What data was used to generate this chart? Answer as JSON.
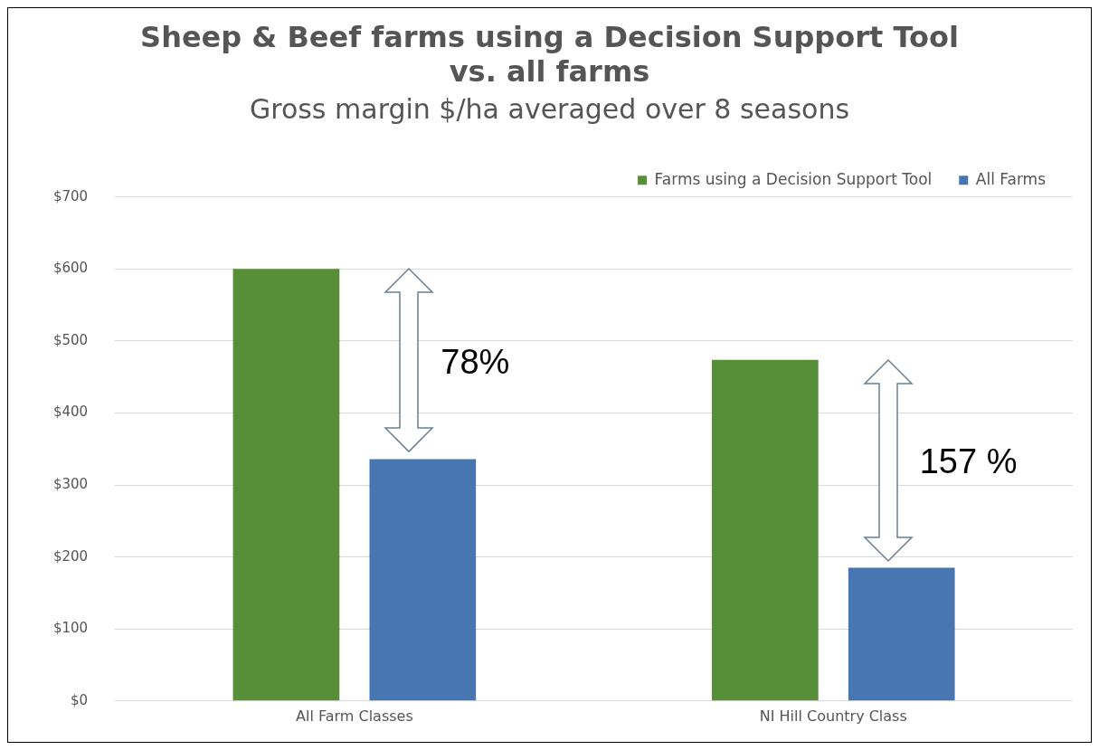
{
  "chart_data": {
    "type": "bar",
    "title": [
      "Sheep & Beef farms using a Decision Support Tool",
      "vs. all farms"
    ],
    "subtitle": "Gross margin $/ha averaged over 8 seasons",
    "categories": [
      "All Farm Classes",
      "NI Hill Country Class"
    ],
    "series": [
      {
        "name": "Farms using a Decision Support Tool",
        "color": "#568f37",
        "values": [
          600,
          474
        ]
      },
      {
        "name": "All Farms",
        "color": "#4876b0",
        "values": [
          336,
          185
        ]
      }
    ],
    "ylim": [
      0,
      700
    ],
    "yticks": [
      {
        "value": 0,
        "label": "$0"
      },
      {
        "value": 100,
        "label": "$100"
      },
      {
        "value": 200,
        "label": "$200"
      },
      {
        "value": 300,
        "label": "$300"
      },
      {
        "value": 400,
        "label": "$400"
      },
      {
        "value": 500,
        "label": "$500"
      },
      {
        "value": 600,
        "label": "$600"
      },
      {
        "value": 700,
        "label": "$700"
      }
    ],
    "grid": "y",
    "legend": "top right",
    "annotations": [
      "78%",
      "157 %"
    ]
  }
}
